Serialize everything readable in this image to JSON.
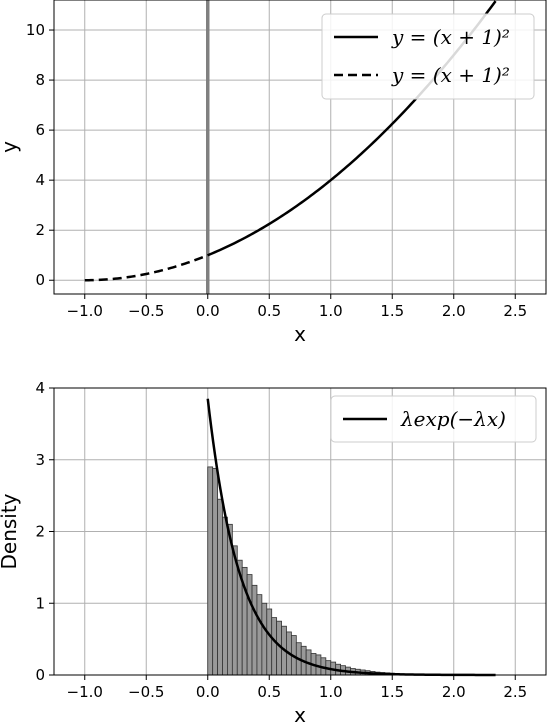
{
  "colors": {
    "line": "#000000",
    "grid": "#b0b0b0",
    "vline": "#808080",
    "bar": "#999999",
    "bar_edge": "#333333"
  },
  "chart_data": [
    {
      "type": "line",
      "xlabel": "x",
      "ylabel": "y",
      "xlim": [
        -1.25,
        2.75
      ],
      "ylim": [
        -0.55,
        11.2
      ],
      "xticks": [
        -1.0,
        -0.5,
        0.0,
        0.5,
        1.0,
        1.5,
        2.0,
        2.5
      ],
      "xtick_labels": [
        "−1.0",
        "−0.5",
        "0.0",
        "0.5",
        "1.0",
        "1.5",
        "2.0",
        "2.5"
      ],
      "yticks": [
        0,
        2,
        4,
        6,
        8,
        10
      ],
      "ytick_labels": [
        "0",
        "2",
        "4",
        "6",
        "8",
        "10"
      ],
      "grid": true,
      "legend_position": "top-right",
      "vertical_line_x": 0.0,
      "series": [
        {
          "name": "y = (x + 1)²",
          "style": "solid",
          "x_range": [
            0.0,
            2.34
          ],
          "formula": "(x+1)^2"
        },
        {
          "name": "y = (x + 1)²",
          "style": "dashed",
          "x_range": [
            -1.0,
            0.0
          ],
          "formula": "(x+1)^2"
        }
      ]
    },
    {
      "type": "bar",
      "xlabel": "x",
      "ylabel": "Density",
      "xlim": [
        -1.25,
        2.75
      ],
      "ylim": [
        0,
        4
      ],
      "xticks": [
        -1.0,
        -0.5,
        0.0,
        0.5,
        1.0,
        1.5,
        2.0,
        2.5
      ],
      "xtick_labels": [
        "−1.0",
        "−0.5",
        "0.0",
        "0.5",
        "1.0",
        "1.5",
        "2.0",
        "2.5"
      ],
      "yticks": [
        0,
        1,
        2,
        3,
        4
      ],
      "ytick_labels": [
        "0",
        "1",
        "2",
        "3",
        "4"
      ],
      "grid": true,
      "legend_position": "top-right",
      "bin_width": 0.04,
      "bin_start": 0.0,
      "values": [
        2.9,
        2.88,
        2.45,
        2.2,
        2.1,
        1.8,
        1.6,
        1.5,
        1.4,
        1.25,
        1.12,
        1.0,
        0.92,
        0.8,
        0.75,
        0.68,
        0.6,
        0.55,
        0.45,
        0.4,
        0.35,
        0.3,
        0.28,
        0.24,
        0.2,
        0.18,
        0.15,
        0.13,
        0.11,
        0.09,
        0.08,
        0.07,
        0.06,
        0.05,
        0.04,
        0.035,
        0.03,
        0.025,
        0.02,
        0.015
      ],
      "series": [
        {
          "name": "λexp(−λx)",
          "style": "solid",
          "x_range": [
            0.0,
            2.34
          ],
          "lambda": 3.85
        }
      ]
    }
  ]
}
